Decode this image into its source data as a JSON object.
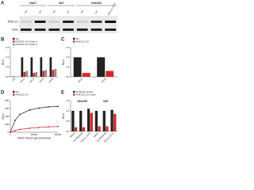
{
  "blot": {
    "panel": "A",
    "cell_lines": [
      "Huh7",
      "U87",
      "Hek293"
    ],
    "lanes": [
      "KO",
      "Scr",
      "KO",
      "Scr",
      "KO",
      "Scr",
      "Scr + RNF121 OVX"
    ],
    "rows": [
      "RNF121",
      "actin"
    ]
  },
  "chart_data": [
    {
      "type": "bar",
      "panel": "B",
      "ylabel": "RLU",
      "categories": [
        "Ctrl",
        "AAV1",
        "AAV2",
        "AAV4",
        "AAV6"
      ],
      "series": [
        {
          "name": "Scr",
          "color": "#222222",
          "values": [
            0.02,
            1,
            1,
            1,
            1
          ]
        },
        {
          "name": "RNF121 KO Guide 1",
          "color": "#d62728",
          "values": [
            0.02,
            0.25,
            0.2,
            0.3,
            0.35
          ]
        },
        {
          "name": "RNF121 KO Guide 2",
          "color": "#8c8c8c",
          "values": [
            0.02,
            0.3,
            0.25,
            0.35,
            0.4
          ]
        }
      ],
      "ylim": [
        0,
        1.5
      ],
      "yticks": [
        {
          "value": 0,
          "label": "0.0"
        },
        0.5,
        {
          "value": 1,
          "label": "1.0"
        },
        1.5
      ]
    },
    {
      "type": "bar",
      "panel": "C",
      "ylabel": "RLU",
      "categories": [
        "AAV2",
        "AAV6"
      ],
      "series": [
        {
          "name": "Scr",
          "color": "#222222",
          "values": [
            1,
            1
          ]
        },
        {
          "name": "RNF121 KO",
          "color": "#d62728",
          "values": [
            0.2,
            0.3
          ]
        }
      ],
      "ylim": [
        0,
        1.5
      ],
      "yticks": [
        {
          "value": 0,
          "label": "0.0"
        },
        0.5,
        {
          "value": 1,
          "label": "1.0"
        },
        1.5
      ]
    },
    {
      "type": "line",
      "panel": "D",
      "ylabel": "RLU",
      "xlabel": "AAV2 Vector genomes/cell",
      "x": [
        0,
        5000,
        10000,
        20000,
        30000,
        40000,
        50000
      ],
      "series": [
        {
          "name": "Scr",
          "color": "#222222",
          "values": [
            0,
            300,
            450,
            560,
            610,
            640,
            650
          ]
        },
        {
          "name": "RNF121 KO",
          "color": "#d62728",
          "values": [
            0,
            40,
            70,
            100,
            120,
            135,
            145
          ]
        }
      ],
      "xlim": [
        0,
        50000
      ],
      "xticks": [
        0,
        25000,
        50000
      ],
      "ylim": [
        0,
        800
      ],
      "yticks": [
        0,
        200,
        400,
        600,
        800
      ]
    },
    {
      "type": "bar",
      "panel": "E",
      "ylabel": "RLU",
      "group_labels": [
        "Hek293",
        "U87"
      ],
      "categories": [
        "Mock",
        "Cnt Plasmid",
        "RNF121 OVX",
        "Mock",
        "Cnt Plasmid",
        "RNF121 OVX"
      ],
      "series": [
        {
          "name": "Scramble Guide",
          "color": "#222222",
          "values": [
            1,
            1,
            1.1,
            1,
            1,
            1.05
          ]
        },
        {
          "name": "RNF121 KO Guide",
          "color": "#d62728",
          "values": [
            0.2,
            0.2,
            0.9,
            0.25,
            0.25,
            0.85
          ]
        }
      ],
      "ylim": [
        0,
        1.5
      ],
      "yticks": [
        {
          "value": 0,
          "label": "0.0"
        },
        0.5,
        {
          "value": 1,
          "label": "1.0"
        },
        1.5
      ]
    }
  ]
}
